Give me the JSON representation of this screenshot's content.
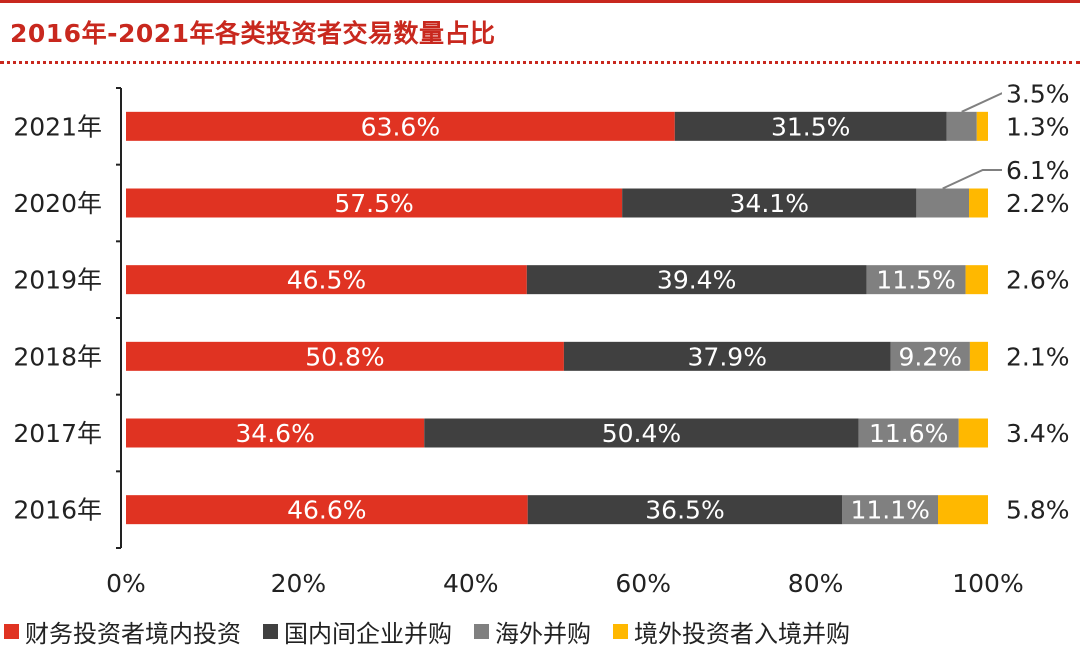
{
  "header": {
    "title": "2016年-2021年各类投资者交易数量占比"
  },
  "colors": {
    "domestic_fin": "#e03322",
    "domestic_corp": "#404040",
    "overseas": "#808080",
    "foreign_inbound": "#ffb800",
    "title": "#c8281e"
  },
  "chart_data": {
    "type": "bar",
    "orientation": "horizontal",
    "stacked": true,
    "categories": [
      "2021年",
      "2020年",
      "2019年",
      "2018年",
      "2017年",
      "2016年"
    ],
    "series": [
      {
        "name": "财务投资者境内投资",
        "values": [
          63.6,
          57.5,
          46.5,
          50.8,
          34.6,
          46.6
        ],
        "labels": [
          "63.6%",
          "57.5%",
          "46.5%",
          "50.8%",
          "34.6%",
          "46.6%"
        ]
      },
      {
        "name": "国内间企业并购",
        "values": [
          31.5,
          34.1,
          39.4,
          37.9,
          50.4,
          36.5
        ],
        "labels": [
          "31.5%",
          "34.1%",
          "39.4%",
          "37.9%",
          "50.4%",
          "36.5%"
        ]
      },
      {
        "name": "海外并购",
        "values": [
          3.5,
          6.1,
          11.5,
          9.2,
          11.6,
          11.1
        ],
        "labels": [
          "3.5%",
          "6.1%",
          "11.5%",
          "9.2%",
          "11.6%",
          "11.1%"
        ]
      },
      {
        "name": "境外投资者入境并购",
        "values": [
          1.3,
          2.2,
          2.6,
          2.1,
          3.4,
          5.8
        ],
        "labels": [
          "1.3%",
          "2.2%",
          "2.6%",
          "2.1%",
          "3.4%",
          "5.8%"
        ]
      }
    ],
    "xticks": [
      "0%",
      "20%",
      "40%",
      "60%",
      "80%",
      "100%"
    ],
    "xlim": [
      0,
      100
    ],
    "legend_position": "bottom",
    "grid": false
  }
}
